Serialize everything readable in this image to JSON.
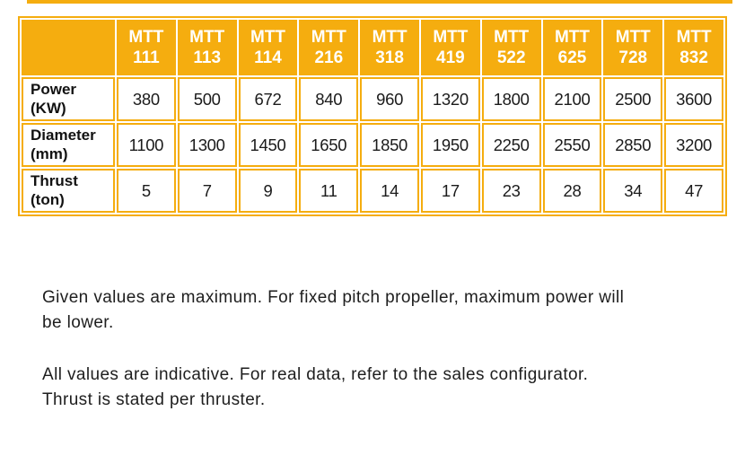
{
  "colors": {
    "accent": "#F5AD0F",
    "header_text": "#FFFFFF",
    "body_text": "#1E1E1E"
  },
  "table": {
    "header_prefix": "MTT",
    "models": [
      "111",
      "113",
      "114",
      "216",
      "318",
      "419",
      "522",
      "625",
      "728",
      "832"
    ],
    "rows": [
      {
        "name": "Power",
        "unit": "(KW)",
        "values": [
          "380",
          "500",
          "672",
          "840",
          "960",
          "1320",
          "1800",
          "2100",
          "2500",
          "3600"
        ]
      },
      {
        "name": "Diameter",
        "unit": "(mm)",
        "values": [
          "1100",
          "1300",
          "1450",
          "1650",
          "1850",
          "1950",
          "2250",
          "2550",
          "2850",
          "3200"
        ]
      },
      {
        "name": "Thrust",
        "unit": "(ton)",
        "values": [
          "5",
          "7",
          "9",
          "11",
          "14",
          "17",
          "23",
          "28",
          "34",
          "47"
        ]
      }
    ]
  },
  "notes": [
    {
      "lines": [
        "Given values are maximum. For fixed pitch propeller, maximum power will",
        "be lower."
      ]
    },
    {
      "lines": [
        "All values are indicative. For real data, refer to the sales configurator.",
        "Thrust is stated per thruster."
      ]
    }
  ]
}
